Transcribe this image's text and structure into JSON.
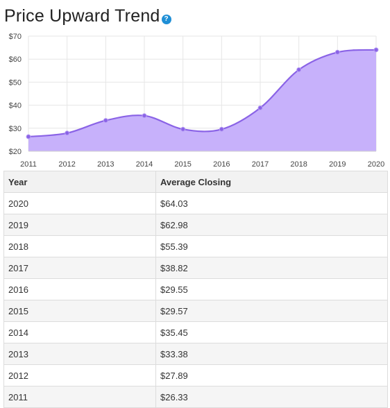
{
  "header": {
    "title": "Price Upward Trend",
    "help_icon": "question-circle-icon",
    "help_glyph": "?"
  },
  "colors": {
    "line": "#8a63e6",
    "fill": "#c7b1fb",
    "point": "#8a63e6",
    "grid": "#e6e6e6",
    "help": "#1f8fd6"
  },
  "chart_data": {
    "type": "area",
    "title": "Price Upward Trend",
    "x": [
      "2011",
      "2012",
      "2013",
      "2014",
      "2015",
      "2016",
      "2017",
      "2018",
      "2019",
      "2020"
    ],
    "values": [
      26.33,
      27.89,
      33.38,
      35.45,
      29.57,
      29.55,
      38.82,
      55.39,
      62.98,
      64.03
    ],
    "ylim": [
      20,
      70
    ],
    "yticks": [
      20,
      30,
      40,
      50,
      60,
      70
    ],
    "ytick_labels": [
      "$20",
      "$30",
      "$40",
      "$50",
      "$60",
      "$70"
    ],
    "grid": true,
    "smooth": true
  },
  "table": {
    "headers": [
      "Year",
      "Average Closing"
    ],
    "rows": [
      [
        "2020",
        "$64.03"
      ],
      [
        "2019",
        "$62.98"
      ],
      [
        "2018",
        "$55.39"
      ],
      [
        "2017",
        "$38.82"
      ],
      [
        "2016",
        "$29.55"
      ],
      [
        "2015",
        "$29.57"
      ],
      [
        "2014",
        "$35.45"
      ],
      [
        "2013",
        "$33.38"
      ],
      [
        "2012",
        "$27.89"
      ],
      [
        "2011",
        "$26.33"
      ]
    ]
  }
}
